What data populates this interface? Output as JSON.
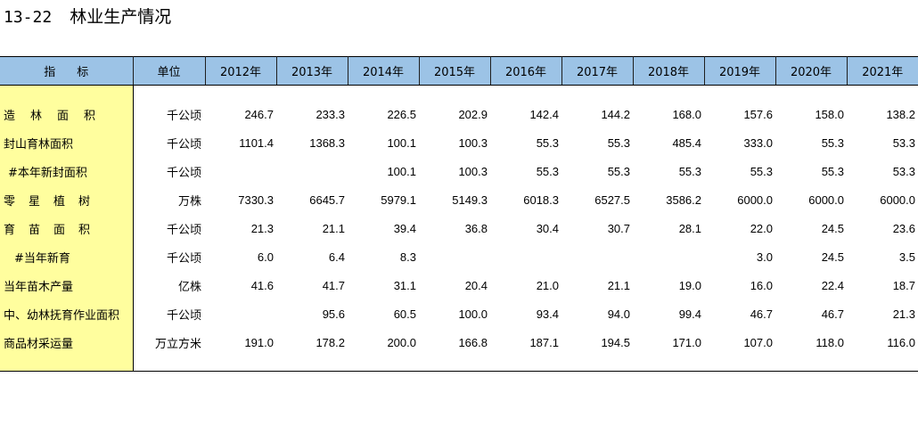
{
  "title": {
    "number": "13-22",
    "text": "林业生产情况"
  },
  "table": {
    "headers": {
      "indicator": "指标",
      "unit": "单位",
      "years": [
        "2012年",
        "2013年",
        "2014年",
        "2015年",
        "2016年",
        "2017年",
        "2018年",
        "2019年",
        "2020年",
        "2021年"
      ]
    },
    "rows": [
      {
        "indicator": "造林面积",
        "unit": "千公顷",
        "values": [
          "246.7",
          "233.3",
          "226.5",
          "202.9",
          "142.4",
          "144.2",
          "168.0",
          "157.6",
          "158.0",
          "138.2"
        ]
      },
      {
        "indicator": "封山育林面积",
        "unit": "千公顷",
        "values": [
          "1101.4",
          "1368.3",
          "100.1",
          "100.3",
          "55.3",
          "55.3",
          "485.4",
          "333.0",
          "55.3",
          "53.3"
        ]
      },
      {
        "indicator": "#本年新封面积",
        "unit": "千公顷",
        "values": [
          "",
          "",
          "100.1",
          "100.3",
          "55.3",
          "55.3",
          "55.3",
          "55.3",
          "55.3",
          "53.3"
        ]
      },
      {
        "indicator": "零星植树",
        "unit": "万株",
        "values": [
          "7330.3",
          "6645.7",
          "5979.1",
          "5149.3",
          "6018.3",
          "6527.5",
          "3586.2",
          "6000.0",
          "6000.0",
          "6000.0"
        ]
      },
      {
        "indicator": "育苗面积",
        "unit": "千公顷",
        "values": [
          "21.3",
          "21.1",
          "39.4",
          "36.8",
          "30.4",
          "30.7",
          "28.1",
          "22.0",
          "24.5",
          "23.6"
        ]
      },
      {
        "indicator": "#当年新育",
        "unit": "千公顷",
        "values": [
          "6.0",
          "6.4",
          "8.3",
          "",
          "",
          "",
          "",
          "3.0",
          "24.5",
          "3.5"
        ]
      },
      {
        "indicator": "当年苗木产量",
        "unit": "亿株",
        "values": [
          "41.6",
          "41.7",
          "31.1",
          "20.4",
          "21.0",
          "21.1",
          "19.0",
          "16.0",
          "22.4",
          "18.7"
        ]
      },
      {
        "indicator": "中、幼林抚育作业面积",
        "unit": "千公顷",
        "values": [
          "",
          "95.6",
          "60.5",
          "100.0",
          "93.4",
          "94.0",
          "99.4",
          "46.7",
          "46.7",
          "21.3"
        ]
      },
      {
        "indicator": "商品材采运量",
        "unit": "万立方米",
        "values": [
          "191.0",
          "178.2",
          "200.0",
          "166.8",
          "187.1",
          "194.5",
          "171.0",
          "107.0",
          "118.0",
          "116.0"
        ]
      }
    ]
  }
}
